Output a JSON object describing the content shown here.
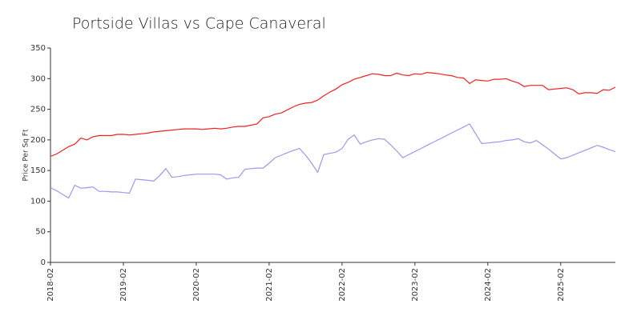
{
  "chart_data": {
    "type": "line",
    "title": "Portside Villas vs Cape Canaveral",
    "y_label": "Price Per Sq Ft",
    "categories": [
      "2018-02",
      "2018-03",
      "2018-04",
      "2018-05",
      "2018-06",
      "2018-07",
      "2018-08",
      "2018-09",
      "2018-10",
      "2018-11",
      "2018-12",
      "2019-01",
      "2019-02",
      "2019-03",
      "2019-04",
      "2019-05",
      "2019-06",
      "2019-07",
      "2019-08",
      "2019-09",
      "2019-10",
      "2019-11",
      "2019-12",
      "2020-01",
      "2020-02",
      "2020-03",
      "2020-04",
      "2020-05",
      "2020-06",
      "2020-07",
      "2020-08",
      "2020-09",
      "2020-10",
      "2020-11",
      "2020-12",
      "2021-01",
      "2021-02",
      "2021-03",
      "2021-04",
      "2021-05",
      "2021-06",
      "2021-07",
      "2021-08",
      "2021-09",
      "2021-10",
      "2021-11",
      "2021-12",
      "2022-01",
      "2022-02",
      "2022-03",
      "2022-04",
      "2022-05",
      "2022-06",
      "2022-07",
      "2022-08",
      "2022-09",
      "2022-10",
      "2022-11",
      "2022-12",
      "2023-01",
      "2023-02",
      "2023-03",
      "2023-04",
      "2023-05",
      "2023-06",
      "2023-07",
      "2023-08",
      "2023-09",
      "2023-10",
      "2023-11",
      "2023-12",
      "2024-01",
      "2024-02",
      "2024-03",
      "2024-04",
      "2024-05",
      "2024-06",
      "2024-07",
      "2024-08",
      "2024-09",
      "2024-10",
      "2024-11",
      "2024-12",
      "2025-01",
      "2025-02",
      "2025-03",
      "2025-04",
      "2025-05",
      "2025-06",
      "2025-07",
      "2025-08",
      "2025-09",
      "2025-10",
      "2025-11"
    ],
    "series": [
      {
        "color": "#ee2222",
        "values": [
          173,
          177,
          183,
          189,
          193,
          203,
          200,
          205,
          207,
          207,
          207,
          209,
          209,
          208,
          209,
          210,
          211,
          213,
          214,
          215,
          216,
          217,
          218,
          218,
          218,
          217,
          218,
          219,
          218,
          219,
          221,
          222,
          222,
          224,
          226,
          236,
          238,
          242,
          244,
          249,
          254,
          258,
          260,
          261,
          265,
          272,
          278,
          283,
          290,
          294,
          299,
          302,
          305,
          308,
          307,
          305,
          305,
          309,
          306,
          305,
          308,
          307,
          310,
          309,
          308,
          306,
          305,
          302,
          301,
          292,
          298,
          297,
          296,
          299,
          299,
          300,
          296,
          293,
          287,
          289,
          289,
          289,
          282,
          283,
          284,
          285,
          282,
          275,
          277,
          277,
          276,
          282,
          281,
          286
        ]
      },
      {
        "color": "#9999ee",
        "values": [
          122,
          117,
          111,
          105,
          126,
          121,
          122,
          123,
          116,
          116,
          115,
          115,
          114,
          113,
          136,
          135,
          134,
          133,
          142,
          153,
          139,
          140,
          142,
          143,
          144,
          144,
          144,
          144,
          143,
          136,
          138,
          139,
          152,
          153,
          154,
          154,
          162,
          171,
          175,
          179,
          183,
          186,
          175,
          162,
          147,
          176,
          178,
          180,
          186,
          201,
          208,
          193,
          197,
          200,
          202,
          201,
          192,
          182,
          171,
          176,
          181,
          186,
          191,
          196,
          201,
          206,
          211,
          216,
          221,
          226,
          210,
          194,
          195,
          196,
          197,
          199,
          200,
          202,
          197,
          195,
          199,
          192,
          185,
          177,
          169,
          171,
          175,
          179,
          183,
          187,
          191,
          188,
          184,
          181
        ]
      }
    ],
    "xticks": [
      "2018-02",
      "2019-02",
      "2020-02",
      "2021-02",
      "2022-02",
      "2023-02",
      "2024-02",
      "2025-02"
    ],
    "ylim": [
      0,
      350
    ],
    "yticks": [
      0,
      50,
      100,
      150,
      200,
      250,
      300,
      350
    ]
  }
}
